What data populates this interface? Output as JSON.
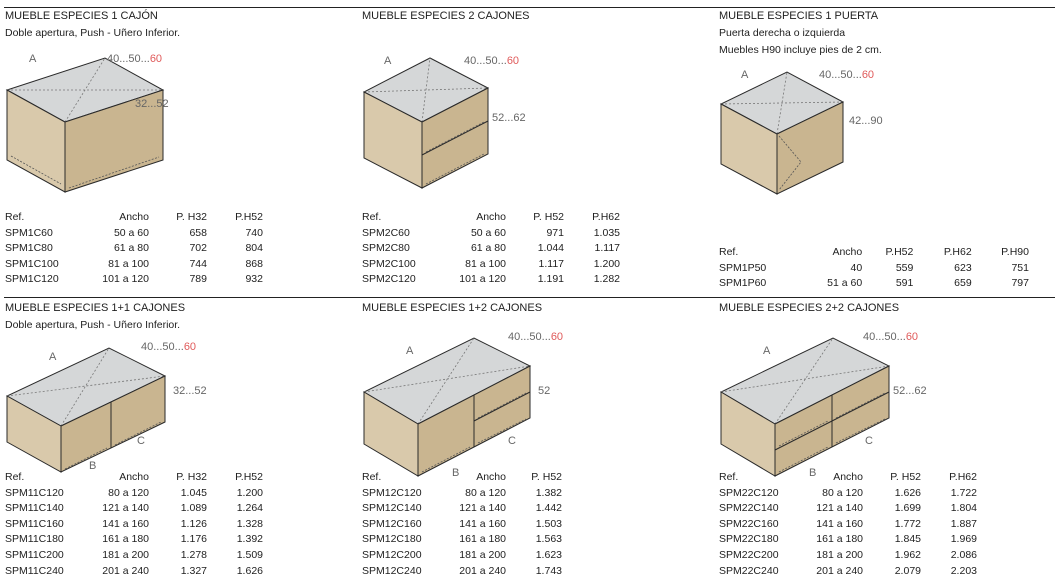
{
  "colors": {
    "top_face": "#d5d7d8",
    "front_face": "#d9c9ab",
    "side_face": "#c9b590",
    "outline": "#2a2a2a",
    "accent_red": "#e05a5a",
    "dim_gray": "#666666"
  },
  "panels": [
    {
      "title": "MUEBLE ESPECIES 1 CAJÓN",
      "subtitles": [
        "Doble apertura, Push - Uñero Inferior."
      ],
      "dims": {
        "a": "A",
        "w_gray": "40...50...",
        "w_red": "60",
        "h": "32...52"
      },
      "table": {
        "headers": [
          "Ref.",
          "Ancho",
          "P. H32",
          "P.H52"
        ],
        "rows": [
          [
            "SPM1C60",
            "50 a 60",
            "658",
            "740"
          ],
          [
            "SPM1C80",
            "61 a 80",
            "702",
            "804"
          ],
          [
            "SPM1C100",
            "81 a 100",
            "744",
            "868"
          ],
          [
            "SPM1C120",
            "101 a 120",
            "789",
            "932"
          ]
        ]
      }
    },
    {
      "title": "MUEBLE ESPECIES 2 CAJONES",
      "subtitles": [],
      "dims": {
        "a": "A",
        "w_gray": "40...50...",
        "w_red": "60",
        "h": "52...62"
      },
      "table": {
        "headers": [
          "Ref.",
          "Ancho",
          "P. H52",
          "P.H62"
        ],
        "rows": [
          [
            "SPM2C60",
            "50 a 60",
            "971",
            "1.035"
          ],
          [
            "SPM2C80",
            "61 a 80",
            "1.044",
            "1.117"
          ],
          [
            "SPM2C100",
            "81 a 100",
            "1.117",
            "1.200"
          ],
          [
            "SPM2C120",
            "101 a 120",
            "1.191",
            "1.282"
          ]
        ]
      }
    },
    {
      "title": "MUEBLE ESPECIES 1 PUERTA",
      "subtitles": [
        "Puerta derecha o izquierda",
        "Muebles H90 incluye pies de 2 cm."
      ],
      "dims": {
        "a": "A",
        "w_gray": "40...50...",
        "w_red": "60",
        "h": "42...90"
      },
      "table": {
        "headers": [
          "Ref.",
          "Ancho",
          "P.H52",
          "P.H62",
          "P.H90"
        ],
        "rows": [
          [
            "SPM1P50",
            "40",
            "559",
            "623",
            "751"
          ],
          [
            "SPM1P60",
            "51 a 60",
            "591",
            "659",
            "797"
          ]
        ]
      }
    },
    {
      "title": "MUEBLE ESPECIES 1+1 CAJONES",
      "subtitles": [
        "Doble apertura, Push - Uñero Inferior."
      ],
      "dims": {
        "a": "A",
        "b": "B",
        "c": "C",
        "w_gray": "40...50...",
        "w_red": "60",
        "h": "32...52"
      },
      "table": {
        "headers": [
          "Ref.",
          "Ancho",
          "P. H32",
          "P.H52"
        ],
        "rows": [
          [
            "SPM11C120",
            "80 a 120",
            "1.045",
            "1.200"
          ],
          [
            "SPM11C140",
            "121 a 140",
            "1.089",
            "1.264"
          ],
          [
            "SPM11C160",
            "141 a 160",
            "1.126",
            "1.328"
          ],
          [
            "SPM11C180",
            "161 a 180",
            "1.176",
            "1.392"
          ],
          [
            "SPM11C200",
            "181 a 200",
            "1.278",
            "1.509"
          ],
          [
            "SPM11C240",
            "201 a 240",
            "1.327",
            "1.626"
          ]
        ]
      }
    },
    {
      "title": "MUEBLE ESPECIES 1+2 CAJONES",
      "subtitles": [],
      "dims": {
        "a": "A",
        "b": "B",
        "c": "C",
        "w_gray": "40...50...",
        "w_red": "60",
        "h": "52"
      },
      "table": {
        "headers": [
          "Ref.",
          "Ancho",
          "P. H52"
        ],
        "rows": [
          [
            "SPM12C120",
            "80 a 120",
            "1.382"
          ],
          [
            "SPM12C140",
            "121 a 140",
            "1.442"
          ],
          [
            "SPM12C160",
            "141 a 160",
            "1.503"
          ],
          [
            "SPM12C180",
            "161 a 180",
            "1.563"
          ],
          [
            "SPM12C200",
            "181 a 200",
            "1.623"
          ],
          [
            "SPM12C240",
            "201 a 240",
            "1.743"
          ]
        ]
      }
    },
    {
      "title": "MUEBLE ESPECIES 2+2 CAJONES",
      "subtitles": [],
      "dims": {
        "a": "A",
        "b": "B",
        "c": "C",
        "w_gray": "40...50...",
        "w_red": "60",
        "h": "52...62"
      },
      "table": {
        "headers": [
          "Ref.",
          "Ancho",
          "P. H52",
          "P.H62"
        ],
        "rows": [
          [
            "SPM22C120",
            "80 a 120",
            "1.626",
            "1.722"
          ],
          [
            "SPM22C140",
            "121 a 140",
            "1.699",
            "1.804"
          ],
          [
            "SPM22C160",
            "141 a 160",
            "1.772",
            "1.887"
          ],
          [
            "SPM22C180",
            "161 a 180",
            "1.845",
            "1.969"
          ],
          [
            "SPM22C200",
            "181 a 200",
            "1.962",
            "2.086"
          ],
          [
            "SPM22C240",
            "201 a 240",
            "2.079",
            "2.203"
          ]
        ]
      }
    }
  ]
}
